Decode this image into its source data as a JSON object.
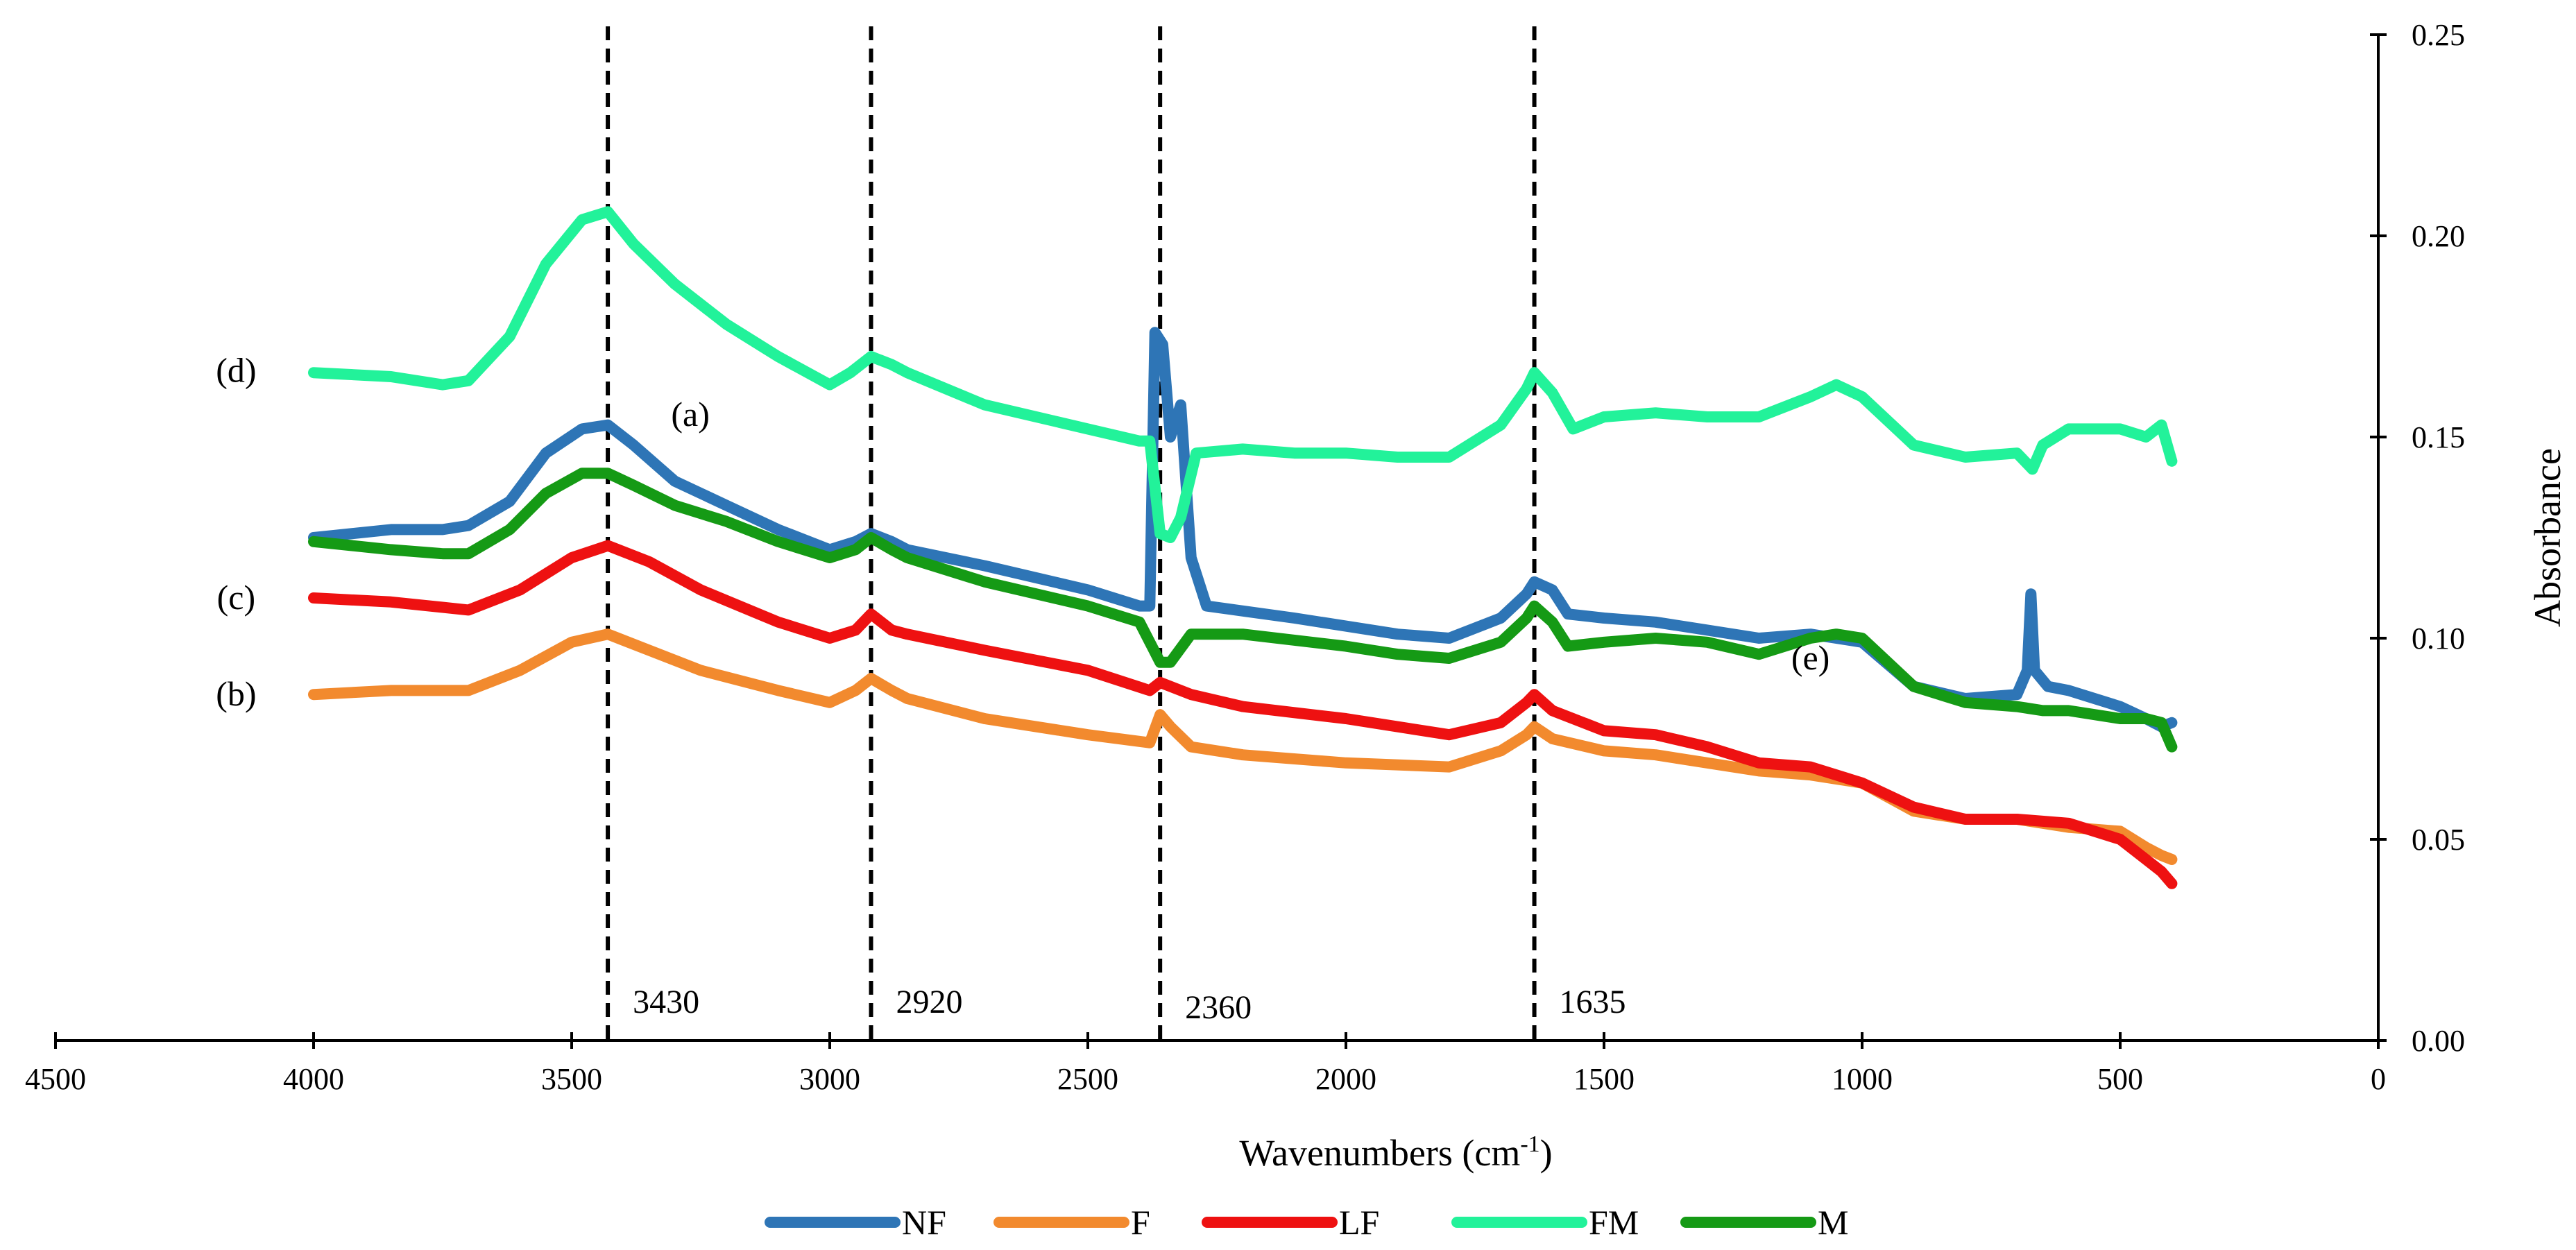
{
  "chart_data": {
    "type": "line",
    "title": "",
    "xlabel": "Wavenumbers (cm",
    "xlabel_sup": "-1",
    "xlabel_suffix": ")",
    "ylabel": "Absorbance",
    "xlim": [
      4500,
      0
    ],
    "ylim": [
      0.0,
      0.25
    ],
    "x_ticks": [
      4500,
      4000,
      3500,
      3000,
      2500,
      2000,
      1500,
      1000,
      500,
      0
    ],
    "y_ticks": [
      "0.00",
      "0.05",
      "0.10",
      "0.15",
      "0.20",
      "0.25"
    ],
    "y_axis_side": "right",
    "grid": false,
    "legend_position": "bottom",
    "vertical_markers": [
      {
        "x": 3430,
        "label": "3430"
      },
      {
        "x": 2920,
        "label": "2920"
      },
      {
        "x": 2360,
        "label": "2360"
      },
      {
        "x": 1635,
        "label": "1635"
      }
    ],
    "annotations": [
      {
        "text": "(d)",
        "x": 4150,
        "y": 0.1665
      },
      {
        "text": "(a)",
        "x": 3270,
        "y": 0.1555
      },
      {
        "text": "(c)",
        "x": 4150,
        "y": 0.11
      },
      {
        "text": "(b)",
        "x": 4150,
        "y": 0.086
      },
      {
        "text": "(e)",
        "x": 1100,
        "y": 0.095
      }
    ],
    "series": [
      {
        "name": "NF",
        "color": "#2E75B6",
        "points": [
          [
            4000,
            0.125
          ],
          [
            3850,
            0.127
          ],
          [
            3750,
            0.127
          ],
          [
            3700,
            0.128
          ],
          [
            3620,
            0.134
          ],
          [
            3550,
            0.146
          ],
          [
            3480,
            0.152
          ],
          [
            3430,
            0.153
          ],
          [
            3380,
            0.148
          ],
          [
            3300,
            0.139
          ],
          [
            3200,
            0.133
          ],
          [
            3100,
            0.127
          ],
          [
            3000,
            0.122
          ],
          [
            2950,
            0.124
          ],
          [
            2920,
            0.126
          ],
          [
            2880,
            0.124
          ],
          [
            2850,
            0.122
          ],
          [
            2700,
            0.118
          ],
          [
            2500,
            0.112
          ],
          [
            2400,
            0.108
          ],
          [
            2380,
            0.108
          ],
          [
            2370,
            0.176
          ],
          [
            2355,
            0.173
          ],
          [
            2340,
            0.15
          ],
          [
            2320,
            0.158
          ],
          [
            2300,
            0.12
          ],
          [
            2270,
            0.108
          ],
          [
            2100,
            0.105
          ],
          [
            1900,
            0.101
          ],
          [
            1800,
            0.1
          ],
          [
            1700,
            0.105
          ],
          [
            1650,
            0.111
          ],
          [
            1635,
            0.114
          ],
          [
            1600,
            0.112
          ],
          [
            1570,
            0.106
          ],
          [
            1500,
            0.105
          ],
          [
            1400,
            0.104
          ],
          [
            1300,
            0.102
          ],
          [
            1200,
            0.1
          ],
          [
            1100,
            0.101
          ],
          [
            1000,
            0.099
          ],
          [
            900,
            0.088
          ],
          [
            800,
            0.085
          ],
          [
            700,
            0.086
          ],
          [
            680,
            0.092
          ],
          [
            673,
            0.111
          ],
          [
            666,
            0.092
          ],
          [
            640,
            0.088
          ],
          [
            600,
            0.087
          ],
          [
            500,
            0.083
          ],
          [
            450,
            0.08
          ],
          [
            420,
            0.078
          ],
          [
            400,
            0.079
          ]
        ]
      },
      {
        "name": "F",
        "color": "#F28A2E",
        "points": [
          [
            4000,
            0.086
          ],
          [
            3850,
            0.087
          ],
          [
            3700,
            0.087
          ],
          [
            3600,
            0.092
          ],
          [
            3500,
            0.099
          ],
          [
            3430,
            0.101
          ],
          [
            3350,
            0.097
          ],
          [
            3250,
            0.092
          ],
          [
            3100,
            0.087
          ],
          [
            3000,
            0.084
          ],
          [
            2950,
            0.087
          ],
          [
            2920,
            0.09
          ],
          [
            2880,
            0.087
          ],
          [
            2850,
            0.085
          ],
          [
            2700,
            0.08
          ],
          [
            2500,
            0.076
          ],
          [
            2380,
            0.074
          ],
          [
            2360,
            0.081
          ],
          [
            2340,
            0.078
          ],
          [
            2300,
            0.073
          ],
          [
            2200,
            0.071
          ],
          [
            2000,
            0.069
          ],
          [
            1800,
            0.068
          ],
          [
            1700,
            0.072
          ],
          [
            1650,
            0.076
          ],
          [
            1635,
            0.078
          ],
          [
            1600,
            0.075
          ],
          [
            1500,
            0.072
          ],
          [
            1400,
            0.071
          ],
          [
            1300,
            0.069
          ],
          [
            1200,
            0.067
          ],
          [
            1100,
            0.066
          ],
          [
            1000,
            0.064
          ],
          [
            900,
            0.057
          ],
          [
            800,
            0.055
          ],
          [
            700,
            0.055
          ],
          [
            600,
            0.053
          ],
          [
            500,
            0.052
          ],
          [
            450,
            0.048
          ],
          [
            420,
            0.046
          ],
          [
            400,
            0.045
          ]
        ]
      },
      {
        "name": "LF",
        "color": "#EE1111",
        "points": [
          [
            4000,
            0.11
          ],
          [
            3850,
            0.109
          ],
          [
            3700,
            0.107
          ],
          [
            3600,
            0.112
          ],
          [
            3500,
            0.12
          ],
          [
            3430,
            0.123
          ],
          [
            3350,
            0.119
          ],
          [
            3250,
            0.112
          ],
          [
            3100,
            0.104
          ],
          [
            3000,
            0.1
          ],
          [
            2950,
            0.102
          ],
          [
            2920,
            0.106
          ],
          [
            2880,
            0.102
          ],
          [
            2850,
            0.101
          ],
          [
            2700,
            0.097
          ],
          [
            2500,
            0.092
          ],
          [
            2380,
            0.087
          ],
          [
            2360,
            0.089
          ],
          [
            2300,
            0.086
          ],
          [
            2200,
            0.083
          ],
          [
            2000,
            0.08
          ],
          [
            1800,
            0.076
          ],
          [
            1700,
            0.079
          ],
          [
            1650,
            0.084
          ],
          [
            1635,
            0.086
          ],
          [
            1600,
            0.082
          ],
          [
            1500,
            0.077
          ],
          [
            1400,
            0.076
          ],
          [
            1300,
            0.073
          ],
          [
            1200,
            0.069
          ],
          [
            1100,
            0.068
          ],
          [
            1000,
            0.064
          ],
          [
            900,
            0.058
          ],
          [
            800,
            0.055
          ],
          [
            700,
            0.055
          ],
          [
            600,
            0.054
          ],
          [
            500,
            0.05
          ],
          [
            450,
            0.045
          ],
          [
            420,
            0.042
          ],
          [
            400,
            0.039
          ]
        ]
      },
      {
        "name": "FM",
        "color": "#22F29A",
        "points": [
          [
            4000,
            0.166
          ],
          [
            3850,
            0.165
          ],
          [
            3750,
            0.163
          ],
          [
            3700,
            0.164
          ],
          [
            3620,
            0.175
          ],
          [
            3550,
            0.193
          ],
          [
            3480,
            0.204
          ],
          [
            3430,
            0.206
          ],
          [
            3380,
            0.198
          ],
          [
            3300,
            0.188
          ],
          [
            3200,
            0.178
          ],
          [
            3100,
            0.17
          ],
          [
            3000,
            0.163
          ],
          [
            2960,
            0.166
          ],
          [
            2920,
            0.17
          ],
          [
            2880,
            0.168
          ],
          [
            2850,
            0.166
          ],
          [
            2700,
            0.158
          ],
          [
            2500,
            0.152
          ],
          [
            2400,
            0.149
          ],
          [
            2380,
            0.149
          ],
          [
            2360,
            0.126
          ],
          [
            2340,
            0.125
          ],
          [
            2320,
            0.13
          ],
          [
            2290,
            0.146
          ],
          [
            2200,
            0.147
          ],
          [
            2100,
            0.146
          ],
          [
            2000,
            0.146
          ],
          [
            1900,
            0.145
          ],
          [
            1800,
            0.145
          ],
          [
            1700,
            0.153
          ],
          [
            1650,
            0.162
          ],
          [
            1635,
            0.166
          ],
          [
            1600,
            0.161
          ],
          [
            1560,
            0.152
          ],
          [
            1500,
            0.155
          ],
          [
            1400,
            0.156
          ],
          [
            1300,
            0.155
          ],
          [
            1200,
            0.155
          ],
          [
            1100,
            0.16
          ],
          [
            1050,
            0.163
          ],
          [
            1000,
            0.16
          ],
          [
            900,
            0.148
          ],
          [
            800,
            0.145
          ],
          [
            700,
            0.146
          ],
          [
            670,
            0.142
          ],
          [
            650,
            0.148
          ],
          [
            600,
            0.152
          ],
          [
            500,
            0.152
          ],
          [
            450,
            0.15
          ],
          [
            420,
            0.153
          ],
          [
            400,
            0.144
          ]
        ]
      },
      {
        "name": "M",
        "color": "#159A15",
        "points": [
          [
            4000,
            0.124
          ],
          [
            3850,
            0.122
          ],
          [
            3750,
            0.121
          ],
          [
            3700,
            0.121
          ],
          [
            3620,
            0.127
          ],
          [
            3550,
            0.136
          ],
          [
            3480,
            0.141
          ],
          [
            3430,
            0.141
          ],
          [
            3380,
            0.138
          ],
          [
            3300,
            0.133
          ],
          [
            3200,
            0.129
          ],
          [
            3100,
            0.124
          ],
          [
            3000,
            0.12
          ],
          [
            2950,
            0.122
          ],
          [
            2920,
            0.125
          ],
          [
            2880,
            0.122
          ],
          [
            2850,
            0.12
          ],
          [
            2700,
            0.114
          ],
          [
            2500,
            0.108
          ],
          [
            2400,
            0.104
          ],
          [
            2360,
            0.094
          ],
          [
            2340,
            0.094
          ],
          [
            2300,
            0.101
          ],
          [
            2200,
            0.101
          ],
          [
            2000,
            0.098
          ],
          [
            1900,
            0.096
          ],
          [
            1800,
            0.095
          ],
          [
            1700,
            0.099
          ],
          [
            1650,
            0.105
          ],
          [
            1635,
            0.108
          ],
          [
            1600,
            0.104
          ],
          [
            1570,
            0.098
          ],
          [
            1500,
            0.099
          ],
          [
            1400,
            0.1
          ],
          [
            1300,
            0.099
          ],
          [
            1200,
            0.096
          ],
          [
            1100,
            0.1
          ],
          [
            1050,
            0.101
          ],
          [
            1000,
            0.1
          ],
          [
            900,
            0.088
          ],
          [
            800,
            0.084
          ],
          [
            700,
            0.083
          ],
          [
            650,
            0.082
          ],
          [
            600,
            0.082
          ],
          [
            500,
            0.08
          ],
          [
            450,
            0.08
          ],
          [
            420,
            0.079
          ],
          [
            400,
            0.073
          ]
        ]
      }
    ]
  }
}
